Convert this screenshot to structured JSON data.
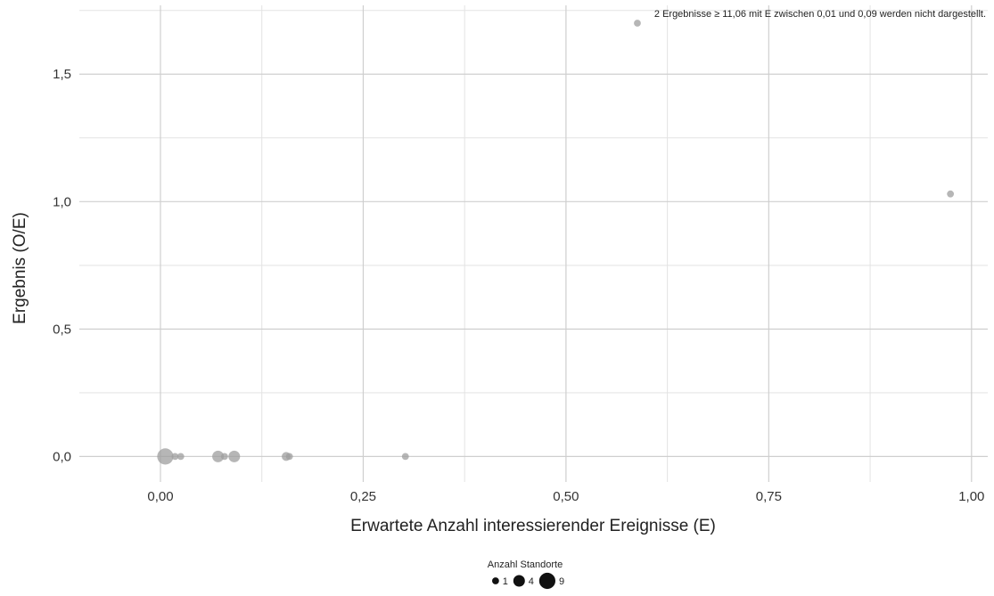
{
  "chart_data": {
    "type": "scatter",
    "xlabel": "Erwartete Anzahl interessierender Ereignisse (E)",
    "ylabel": "Ergebnis (O/E)",
    "xlim": [
      -0.1,
      1.02
    ],
    "ylim": [
      -0.1,
      1.77
    ],
    "x_ticks": [
      0,
      0.25,
      0.5,
      0.75,
      1.0
    ],
    "x_tick_labels": [
      "0,00",
      "0,25",
      "0,50",
      "0,75",
      "1,00"
    ],
    "y_ticks": [
      0,
      0.5,
      1.0,
      1.5
    ],
    "y_tick_labels": [
      "0,0",
      "0,5",
      "1,0",
      "1,5"
    ],
    "grid": true,
    "annotation": "2 Ergebnisse ≥ 11,06 mit E zwischen 0,01 und 0,09 werden nicht dargestellt.",
    "points": [
      {
        "x": 0.006,
        "y": 0.0,
        "count": 9
      },
      {
        "x": 0.018,
        "y": 0.0,
        "count": 1
      },
      {
        "x": 0.025,
        "y": 0.0,
        "count": 1
      },
      {
        "x": 0.071,
        "y": 0.0,
        "count": 4
      },
      {
        "x": 0.079,
        "y": 0.0,
        "count": 1
      },
      {
        "x": 0.091,
        "y": 0.0,
        "count": 4
      },
      {
        "x": 0.155,
        "y": 0.0,
        "count": 2
      },
      {
        "x": 0.159,
        "y": 0.0,
        "count": 1
      },
      {
        "x": 0.302,
        "y": 0.0,
        "count": 1
      },
      {
        "x": 0.588,
        "y": 1.7,
        "count": 1
      },
      {
        "x": 0.974,
        "y": 1.03,
        "count": 1
      }
    ],
    "point_color": "#9e9e9e",
    "legend": {
      "title": "Anzahl Standorte",
      "placement": "bottom",
      "items": [
        {
          "label": "1",
          "count": 1
        },
        {
          "label": "4",
          "count": 4
        },
        {
          "label": "9",
          "count": 9
        }
      ]
    }
  }
}
